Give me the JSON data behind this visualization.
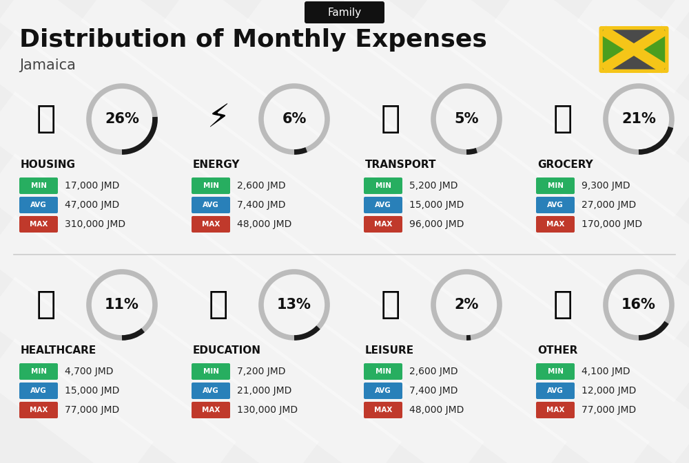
{
  "title": "Distribution of Monthly Expenses",
  "subtitle": "Jamaica",
  "header_label": "Family",
  "background_color": "#eeeeee",
  "categories": [
    {
      "name": "HOUSING",
      "pct": 26,
      "min_val": "17,000 JMD",
      "avg_val": "47,000 JMD",
      "max_val": "310,000 JMD",
      "row": 0,
      "col": 0
    },
    {
      "name": "ENERGY",
      "pct": 6,
      "min_val": "2,600 JMD",
      "avg_val": "7,400 JMD",
      "max_val": "48,000 JMD",
      "row": 0,
      "col": 1
    },
    {
      "name": "TRANSPORT",
      "pct": 5,
      "min_val": "5,200 JMD",
      "avg_val": "15,000 JMD",
      "max_val": "96,000 JMD",
      "row": 0,
      "col": 2
    },
    {
      "name": "GROCERY",
      "pct": 21,
      "min_val": "9,300 JMD",
      "avg_val": "27,000 JMD",
      "max_val": "170,000 JMD",
      "row": 0,
      "col": 3
    },
    {
      "name": "HEALTHCARE",
      "pct": 11,
      "min_val": "4,700 JMD",
      "avg_val": "15,000 JMD",
      "max_val": "77,000 JMD",
      "row": 1,
      "col": 0
    },
    {
      "name": "EDUCATION",
      "pct": 13,
      "min_val": "7,200 JMD",
      "avg_val": "21,000 JMD",
      "max_val": "130,000 JMD",
      "row": 1,
      "col": 1
    },
    {
      "name": "LEISURE",
      "pct": 2,
      "min_val": "2,600 JMD",
      "avg_val": "7,400 JMD",
      "max_val": "48,000 JMD",
      "row": 1,
      "col": 2
    },
    {
      "name": "OTHER",
      "pct": 16,
      "min_val": "4,100 JMD",
      "avg_val": "12,000 JMD",
      "max_val": "77,000 JMD",
      "row": 1,
      "col": 3
    }
  ],
  "color_min": "#27ae60",
  "color_avg": "#2980b9",
  "color_max": "#c0392b",
  "arc_color_active": "#1a1a1a",
  "arc_color_bg": "#bbbbbb",
  "flag_green": "#4a9e1f",
  "flag_black": "#4a4a4a",
  "flag_yellow": "#f5c518",
  "stripe_color": "#ffffff",
  "divider_color": "#cccccc"
}
